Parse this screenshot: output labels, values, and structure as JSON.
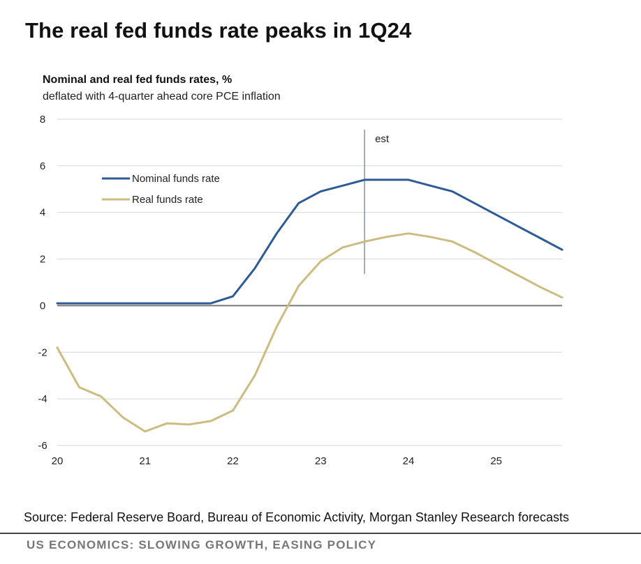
{
  "headline": "The real fed funds rate peaks in 1Q24",
  "chart_data": {
    "type": "line",
    "title": "Nominal and real fed funds rates, %",
    "subtitle": "deflated with 4-quarter ahead core PCE inflation",
    "xlabel": "",
    "ylabel": "",
    "xlim": [
      2020,
      2025.75
    ],
    "ylim": [
      -6,
      8
    ],
    "y_ticks": [
      8,
      6,
      4,
      2,
      0,
      -2,
      -4,
      -6
    ],
    "x_ticks": [
      {
        "value": 2020,
        "label": "20"
      },
      {
        "value": 2021,
        "label": "21"
      },
      {
        "value": 2022,
        "label": "22"
      },
      {
        "value": 2023,
        "label": "23"
      },
      {
        "value": 2024,
        "label": "24"
      },
      {
        "value": 2025,
        "label": "25"
      }
    ],
    "grid": true,
    "legend_position": "top-left",
    "annotation": {
      "x": 2023.5,
      "label": "est"
    },
    "x": [
      2020.0,
      2020.25,
      2020.5,
      2020.75,
      2021.0,
      2021.25,
      2021.5,
      2021.75,
      2022.0,
      2022.25,
      2022.5,
      2022.75,
      2023.0,
      2023.25,
      2023.5,
      2023.75,
      2024.0,
      2024.25,
      2024.5,
      2024.75,
      2025.0,
      2025.25,
      2025.5,
      2025.75
    ],
    "series": [
      {
        "name": "Nominal funds rate",
        "color": "#2e5b95",
        "values": [
          0.1,
          0.1,
          0.1,
          0.1,
          0.1,
          0.1,
          0.1,
          0.1,
          0.4,
          1.6,
          3.1,
          4.4,
          4.9,
          5.15,
          5.4,
          5.4,
          5.4,
          5.15,
          4.9,
          4.4,
          3.9,
          3.4,
          2.9,
          2.4
        ]
      },
      {
        "name": "Real funds rate",
        "color": "#cdbb80",
        "values": [
          -1.8,
          -3.5,
          -3.9,
          -4.8,
          -5.4,
          -5.05,
          -5.1,
          -4.95,
          -4.5,
          -3.0,
          -0.9,
          0.85,
          1.9,
          2.5,
          2.75,
          2.95,
          3.1,
          2.95,
          2.75,
          2.3,
          1.8,
          1.3,
          0.8,
          0.35
        ]
      }
    ]
  },
  "source": "Source: Federal Reserve Board, Bureau of Economic Activity, Morgan Stanley Research forecasts",
  "footer": "US ECONOMICS: SLOWING GROWTH, EASING POLICY"
}
